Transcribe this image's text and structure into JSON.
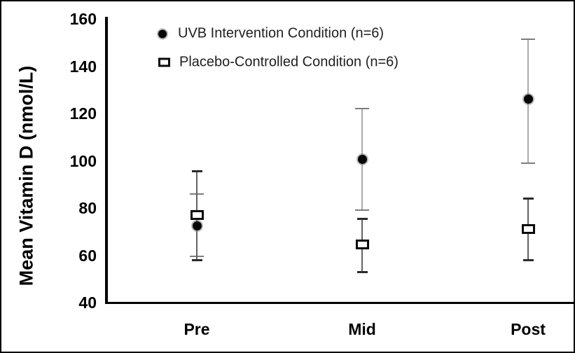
{
  "chart_data": {
    "type": "scatter",
    "title": "",
    "ylabel": "Mean Vitamin D (nmol/L)",
    "xlabel": "",
    "categories": [
      "Pre",
      "Mid",
      "Post"
    ],
    "ylim": [
      40,
      160
    ],
    "yticks": [
      160,
      140,
      120,
      100,
      80,
      60,
      40
    ],
    "grid": false,
    "legend_position": "top-left-inside",
    "series": [
      {
        "name": "UVB Intervention Condition (n=6)",
        "marker": "filled-circle",
        "marker_color": "#060606",
        "errorbar_color": "#ababab",
        "values": [
          72.5,
          100.5,
          126
        ],
        "error_low": [
          59.5,
          79,
          99
        ],
        "error_high": [
          86,
          122,
          151.5
        ]
      },
      {
        "name": "Placebo-Controlled Condition (n=6)",
        "marker": "open-square",
        "marker_color": "#ffffff",
        "marker_border_color": "#0a0a0a",
        "errorbar_color": "#636363",
        "values": [
          77,
          64.5,
          71
        ],
        "error_low": [
          58,
          53,
          58
        ],
        "error_high": [
          95.5,
          75.5,
          84
        ]
      }
    ]
  }
}
